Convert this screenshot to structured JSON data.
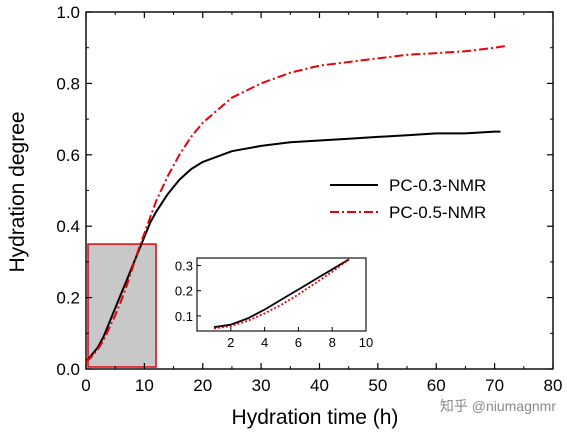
{
  "chart_data": [
    {
      "type": "line",
      "xlabel": "Hydration time (h)",
      "ylabel": "Hydration degree",
      "xlim": [
        0,
        80
      ],
      "ylim": [
        0,
        1.0
      ],
      "x_ticks": [
        "0",
        "10",
        "20",
        "30",
        "40",
        "50",
        "60",
        "70",
        "80"
      ],
      "y_ticks": [
        "0.0",
        "0.2",
        "0.4",
        "0.6",
        "0.8",
        "1.0"
      ],
      "grid": false,
      "legend": "right",
      "series": [
        {
          "name": "PC-0.3-NMR",
          "color": "#000000",
          "style": "solid",
          "x": [
            0,
            1,
            2,
            3,
            4,
            5,
            6,
            7,
            8,
            9,
            10,
            11,
            12,
            14,
            16,
            18,
            20,
            25,
            30,
            35,
            40,
            45,
            50,
            55,
            60,
            65,
            70,
            71
          ],
          "y": [
            0.02,
            0.04,
            0.06,
            0.09,
            0.13,
            0.17,
            0.21,
            0.25,
            0.29,
            0.33,
            0.37,
            0.41,
            0.44,
            0.49,
            0.53,
            0.56,
            0.58,
            0.61,
            0.625,
            0.635,
            0.64,
            0.645,
            0.65,
            0.655,
            0.66,
            0.66,
            0.665,
            0.665
          ]
        },
        {
          "name": "PC-0.5-NMR",
          "color": "#e8000b",
          "style": "dash-dot",
          "x": [
            0,
            1,
            2,
            3,
            4,
            5,
            6,
            7,
            8,
            9,
            10,
            11,
            12,
            14,
            16,
            18,
            20,
            25,
            30,
            35,
            40,
            45,
            50,
            55,
            60,
            65,
            70,
            72
          ],
          "y": [
            0.02,
            0.035,
            0.055,
            0.08,
            0.115,
            0.15,
            0.19,
            0.235,
            0.285,
            0.335,
            0.38,
            0.425,
            0.47,
            0.54,
            0.6,
            0.65,
            0.69,
            0.76,
            0.8,
            0.83,
            0.85,
            0.86,
            0.87,
            0.88,
            0.885,
            0.89,
            0.9,
            0.905
          ]
        }
      ],
      "annotations": [
        {
          "type": "highlight-region",
          "x": [
            0,
            12
          ],
          "y": [
            0,
            0.35
          ],
          "fill": "#c8c8c8",
          "stroke": "#e8000b"
        }
      ]
    },
    {
      "type": "line",
      "xlim": [
        0,
        10
      ],
      "ylim": [
        0.04,
        0.33
      ],
      "x_ticks": [
        "2",
        "4",
        "6",
        "8",
        "10"
      ],
      "y_ticks": [
        "0.1",
        "0.2",
        "0.3"
      ],
      "series": [
        {
          "name": "PC-0.3-NMR",
          "color": "#000000",
          "style": "solid",
          "x": [
            1,
            2,
            3,
            4,
            5,
            6,
            7,
            8,
            9
          ],
          "y": [
            0.055,
            0.065,
            0.09,
            0.125,
            0.165,
            0.205,
            0.245,
            0.285,
            0.325
          ]
        },
        {
          "name": "PC-0.5-NMR",
          "color": "#e8000b",
          "style": "dotted",
          "x": [
            1,
            2,
            3,
            4,
            5,
            6,
            7,
            8,
            9
          ],
          "y": [
            0.05,
            0.06,
            0.08,
            0.11,
            0.145,
            0.185,
            0.23,
            0.275,
            0.325
          ]
        }
      ]
    }
  ],
  "watermark": "知乎 @niumagnmr"
}
